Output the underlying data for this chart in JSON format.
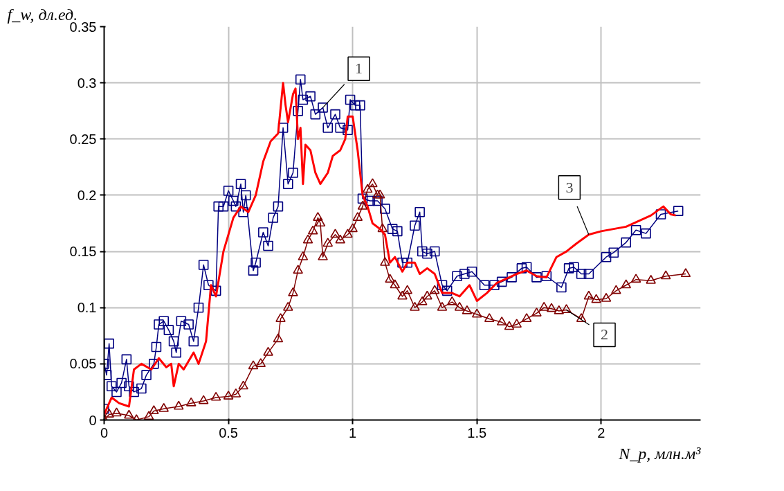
{
  "chart_data": {
    "type": "line",
    "xlabel": "N_p, млн.м³",
    "ylabel": "f_w, дл.ед.",
    "xlim": [
      0,
      2.4
    ],
    "xticks": [
      0,
      0.5,
      1,
      1.5,
      2
    ],
    "ylim": [
      0,
      0.35
    ],
    "yticks": [
      0,
      0.05,
      0.1,
      0.15,
      0.2,
      0.25,
      0.3,
      0.35
    ],
    "grid": true,
    "series": [
      {
        "color": "#000080",
        "marker": "square",
        "x": [
          0.0,
          0.0,
          0.01,
          0.02,
          0.03,
          0.05,
          0.07,
          0.09,
          0.1,
          0.12,
          0.15,
          0.17,
          0.2,
          0.21,
          0.22,
          0.24,
          0.26,
          0.28,
          0.29,
          0.31,
          0.34,
          0.36,
          0.38,
          0.4,
          0.42,
          0.45,
          0.46,
          0.48,
          0.5,
          0.52,
          0.53,
          0.55,
          0.56,
          0.57,
          0.6,
          0.61,
          0.64,
          0.66,
          0.68,
          0.7,
          0.72,
          0.74,
          0.76,
          0.78,
          0.79,
          0.8,
          0.83,
          0.85,
          0.88,
          0.9,
          0.93,
          0.95,
          0.98,
          0.99,
          1.01,
          1.03,
          1.04,
          1.07,
          1.1,
          1.13,
          1.16,
          1.18,
          1.2,
          1.22,
          1.25,
          1.27,
          1.28,
          1.3,
          1.33,
          1.36,
          1.38,
          1.42,
          1.45,
          1.48,
          1.53,
          1.57,
          1.6,
          1.64,
          1.68,
          1.7,
          1.74,
          1.78,
          1.84,
          1.87,
          1.89,
          1.92,
          1.95,
          2.02,
          2.05,
          2.1,
          2.14,
          2.18,
          2.24,
          2.31
        ],
        "values": [
          0.01,
          0.05,
          0.04,
          0.068,
          0.03,
          0.025,
          0.033,
          0.054,
          0.03,
          0.025,
          0.028,
          0.04,
          0.05,
          0.065,
          0.085,
          0.088,
          0.08,
          0.07,
          0.06,
          0.088,
          0.085,
          0.07,
          0.1,
          0.138,
          0.12,
          0.115,
          0.19,
          0.19,
          0.204,
          0.195,
          0.19,
          0.21,
          0.185,
          0.2,
          0.133,
          0.14,
          0.167,
          0.155,
          0.18,
          0.19,
          0.26,
          0.21,
          0.22,
          0.275,
          0.303,
          0.285,
          0.288,
          0.272,
          0.278,
          0.26,
          0.272,
          0.26,
          0.258,
          0.285,
          0.28,
          0.28,
          0.197,
          0.195,
          0.195,
          0.188,
          0.17,
          0.168,
          0.14,
          0.14,
          0.173,
          0.185,
          0.15,
          0.148,
          0.15,
          0.12,
          0.115,
          0.128,
          0.13,
          0.132,
          0.12,
          0.12,
          0.123,
          0.127,
          0.135,
          0.136,
          0.127,
          0.128,
          0.118,
          0.135,
          0.136,
          0.13,
          0.13,
          0.145,
          0.149,
          0.158,
          0.169,
          0.166,
          0.183,
          0.186
        ]
      },
      {
        "color": "#800000",
        "marker": "triangle",
        "x": [
          0,
          0.02,
          0.05,
          0.1,
          0.13,
          0.18,
          0.2,
          0.24,
          0.3,
          0.35,
          0.4,
          0.45,
          0.5,
          0.53,
          0.56,
          0.6,
          0.63,
          0.66,
          0.7,
          0.71,
          0.74,
          0.76,
          0.78,
          0.8,
          0.82,
          0.84,
          0.86,
          0.87,
          0.88,
          0.9,
          0.93,
          0.95,
          0.98,
          1.0,
          1.02,
          1.04,
          1.06,
          1.08,
          1.1,
          1.11,
          1.12,
          1.13,
          1.15,
          1.17,
          1.2,
          1.22,
          1.25,
          1.28,
          1.3,
          1.33,
          1.36,
          1.4,
          1.43,
          1.46,
          1.5,
          1.55,
          1.6,
          1.63,
          1.66,
          1.7,
          1.74,
          1.77,
          1.8,
          1.83,
          1.86,
          1.92,
          1.95,
          1.98,
          2.02,
          2.06,
          2.1,
          2.14,
          2.2,
          2.26,
          2.34
        ],
        "values": [
          0,
          0.005,
          0.006,
          0.004,
          0.0,
          0.003,
          0.008,
          0.01,
          0.012,
          0.015,
          0.017,
          0.02,
          0.021,
          0.023,
          0.03,
          0.048,
          0.05,
          0.06,
          0.072,
          0.09,
          0.1,
          0.113,
          0.133,
          0.145,
          0.16,
          0.168,
          0.18,
          0.175,
          0.145,
          0.157,
          0.165,
          0.16,
          0.165,
          0.17,
          0.18,
          0.19,
          0.205,
          0.21,
          0.2,
          0.2,
          0.17,
          0.14,
          0.125,
          0.12,
          0.11,
          0.115,
          0.1,
          0.105,
          0.11,
          0.115,
          0.1,
          0.105,
          0.1,
          0.097,
          0.094,
          0.09,
          0.087,
          0.083,
          0.085,
          0.09,
          0.095,
          0.1,
          0.099,
          0.097,
          0.098,
          0.09,
          0.11,
          0.107,
          0.108,
          0.115,
          0.12,
          0.125,
          0.124,
          0.128,
          0.13
        ]
      },
      {
        "color": "#ff0000",
        "marker": "none",
        "x": [
          0,
          0.03,
          0.06,
          0.1,
          0.12,
          0.15,
          0.19,
          0.22,
          0.25,
          0.27,
          0.28,
          0.3,
          0.32,
          0.36,
          0.38,
          0.41,
          0.43,
          0.45,
          0.48,
          0.52,
          0.55,
          0.58,
          0.61,
          0.64,
          0.67,
          0.7,
          0.72,
          0.73,
          0.74,
          0.76,
          0.77,
          0.78,
          0.79,
          0.8,
          0.81,
          0.83,
          0.85,
          0.87,
          0.9,
          0.92,
          0.95,
          0.97,
          0.98,
          1.0,
          1.02,
          1.04,
          1.06,
          1.08,
          1.11,
          1.13,
          1.15,
          1.17,
          1.2,
          1.22,
          1.25,
          1.27,
          1.3,
          1.33,
          1.36,
          1.4,
          1.43,
          1.47,
          1.5,
          1.54,
          1.58,
          1.62,
          1.66,
          1.7,
          1.74,
          1.78,
          1.82,
          1.86,
          1.9,
          1.95,
          2.0,
          2.1,
          2.2,
          2.25,
          2.28,
          2.3
        ],
        "values": [
          0.005,
          0.02,
          0.015,
          0.012,
          0.045,
          0.05,
          0.045,
          0.055,
          0.047,
          0.05,
          0.03,
          0.05,
          0.045,
          0.06,
          0.05,
          0.07,
          0.12,
          0.11,
          0.15,
          0.18,
          0.19,
          0.185,
          0.2,
          0.23,
          0.248,
          0.255,
          0.3,
          0.28,
          0.265,
          0.29,
          0.295,
          0.25,
          0.26,
          0.21,
          0.245,
          0.24,
          0.22,
          0.21,
          0.22,
          0.235,
          0.24,
          0.25,
          0.27,
          0.27,
          0.24,
          0.2,
          0.19,
          0.175,
          0.17,
          0.165,
          0.14,
          0.145,
          0.132,
          0.14,
          0.14,
          0.13,
          0.135,
          0.13,
          0.113,
          0.113,
          0.11,
          0.12,
          0.106,
          0.113,
          0.122,
          0.126,
          0.13,
          0.133,
          0.128,
          0.127,
          0.145,
          0.15,
          0.157,
          0.165,
          0.168,
          0.172,
          0.182,
          0.19,
          0.183,
          0.182
        ]
      }
    ],
    "annotations": [
      {
        "text": "1",
        "x": 0.88,
        "y": 0.278
      },
      {
        "text": "2",
        "x": 1.86,
        "y": 0.098
      },
      {
        "text": "3",
        "x": 1.95,
        "y": 0.165
      }
    ]
  }
}
